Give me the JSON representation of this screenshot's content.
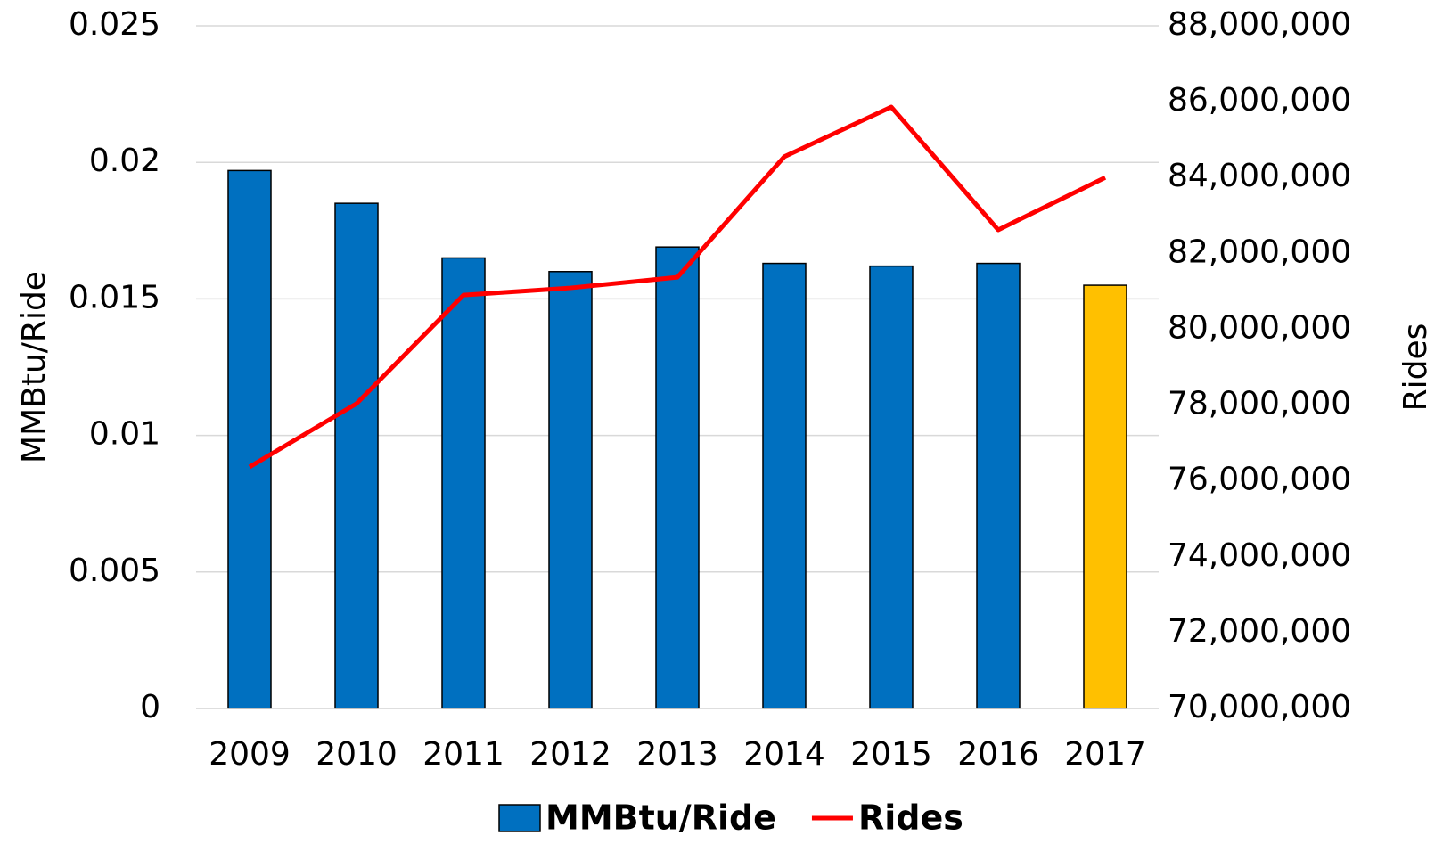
{
  "chart_data": {
    "type": "bar",
    "categories": [
      "2009",
      "2010",
      "2011",
      "2012",
      "2013",
      "2014",
      "2015",
      "2016",
      "2017"
    ],
    "ylabel": "MMBtu/Ride",
    "y2label": "Rides",
    "ylim": [
      0,
      0.025
    ],
    "yticks": [
      0,
      0.005,
      0.01,
      0.015,
      0.02,
      0.025
    ],
    "y2lim": [
      70000000,
      88000000
    ],
    "y2ticks": [
      {
        "value": 70000000,
        "label": "70,000,000"
      },
      {
        "value": 72000000,
        "label": "72,000,000"
      },
      {
        "value": 74000000,
        "label": "74,000,000"
      },
      {
        "value": 76000000,
        "label": "76,000,000"
      },
      {
        "value": 78000000,
        "label": "78,000,000"
      },
      {
        "value": 80000000,
        "label": "80,000,000"
      },
      {
        "value": 82000000,
        "label": "82,000,000"
      },
      {
        "value": 84000000,
        "label": "84,000,000"
      },
      {
        "value": 86000000,
        "label": "86,000,000"
      },
      {
        "value": 88000000,
        "label": "88,000,000"
      }
    ],
    "grid": true,
    "legend": "bottom",
    "series": [
      {
        "name": "MMBtu/Ride",
        "type": "bar",
        "color": "#0070c0",
        "colors": [
          "#0070c0",
          "#0070c0",
          "#0070c0",
          "#0070c0",
          "#0070c0",
          "#0070c0",
          "#0070c0",
          "#0070c0",
          "#ffc000"
        ],
        "values": [
          0.0197,
          0.0185,
          0.0165,
          0.016,
          0.0169,
          0.0163,
          0.0162,
          0.0163,
          0.0155
        ]
      },
      {
        "name": "Rides",
        "type": "line",
        "axis": "y2",
        "color": "#ff0000",
        "values": [
          76370000,
          78040000,
          80900000,
          81090000,
          81370000,
          84550000,
          85860000,
          82620000,
          84000000
        ]
      }
    ]
  }
}
